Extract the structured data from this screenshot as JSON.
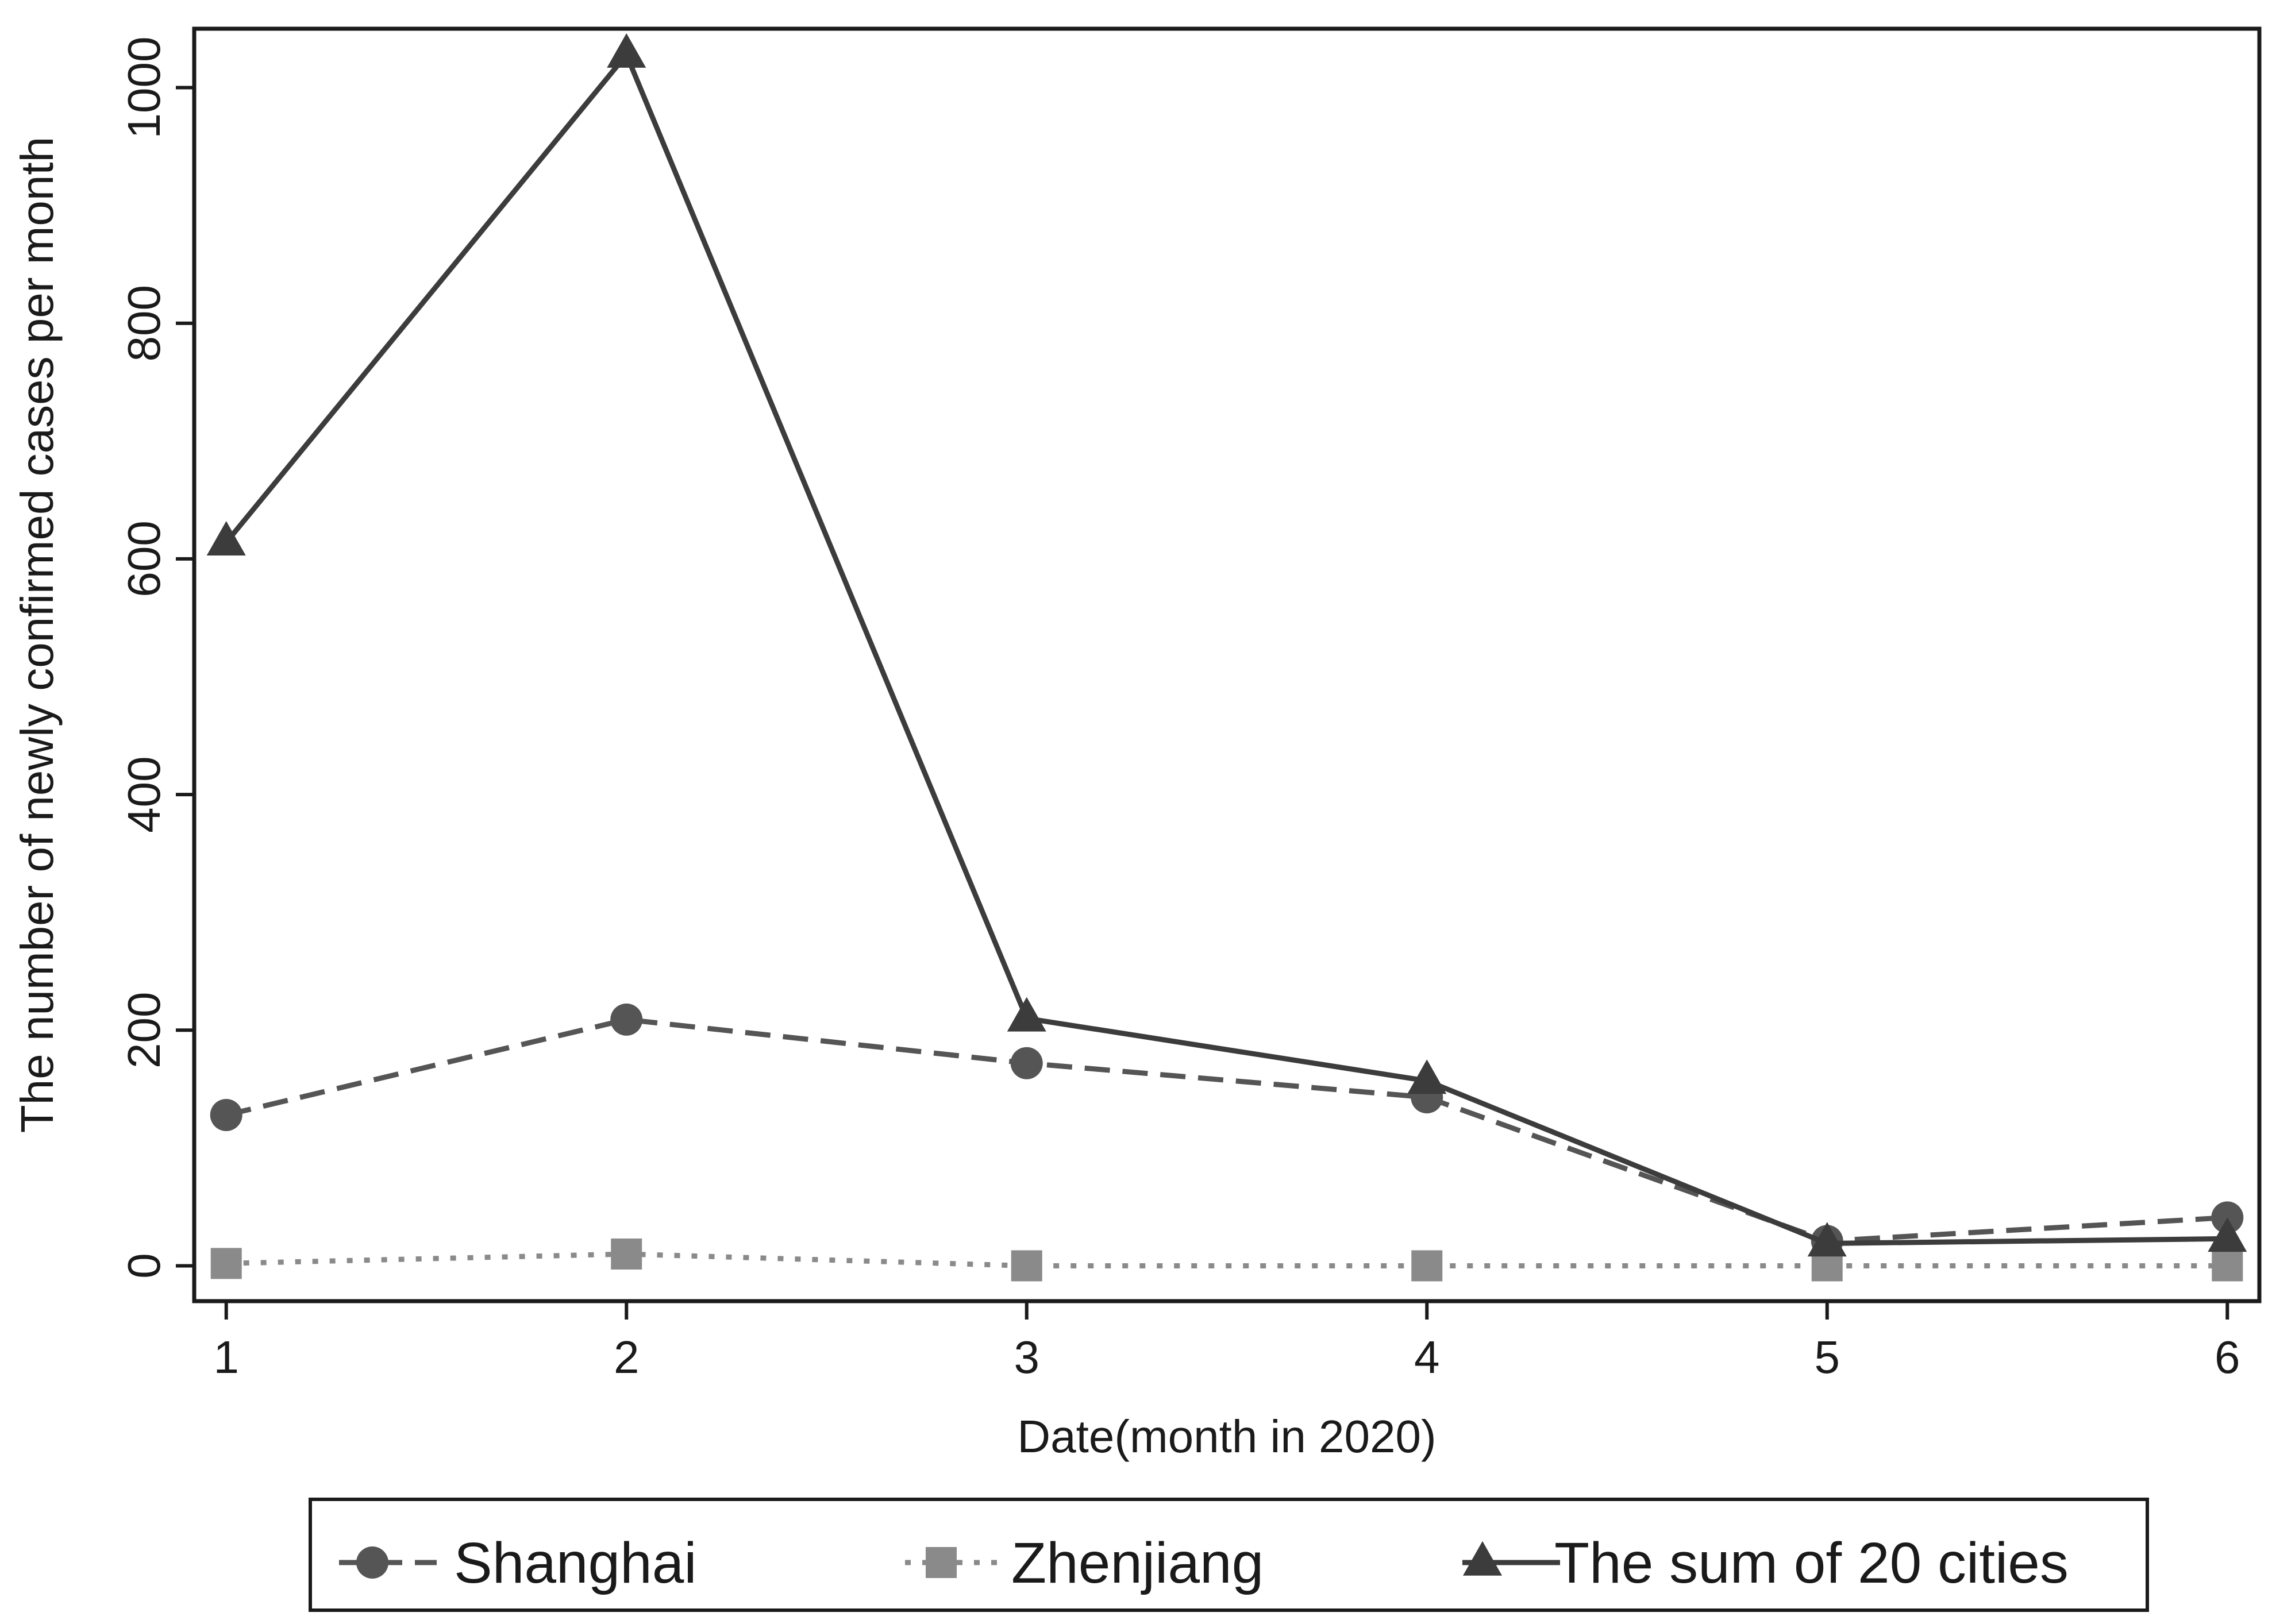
{
  "chart_data": {
    "type": "line",
    "title": "",
    "xlabel": "Date(month in 2020)",
    "ylabel": "The number of newly confirmed cases per month",
    "x": [
      1,
      2,
      3,
      4,
      5,
      6
    ],
    "xlim": [
      0.92,
      6.08
    ],
    "ylim": [
      -30,
      1050
    ],
    "xticks": [
      "1",
      "2",
      "3",
      "4",
      "5",
      "6"
    ],
    "yticks": [
      "0",
      "200",
      "400",
      "600",
      "800",
      "1000"
    ],
    "grid": false,
    "legend_position": "bottom",
    "series": [
      {
        "name": "Shanghai",
        "values": [
          128,
          209,
          172,
          143,
          21,
          41
        ],
        "marker": "circle",
        "line_style": "dashed",
        "color": "#555555"
      },
      {
        "name": "Zhenjiang",
        "values": [
          2,
          10,
          0,
          0,
          0,
          0
        ],
        "marker": "square",
        "line_style": "dotted",
        "color": "#8a8a8a"
      },
      {
        "name": "The sum of 20 cities",
        "values": [
          614,
          1028,
          210,
          157,
          19,
          23
        ],
        "marker": "triangle",
        "line_style": "solid",
        "color": "#3c3c3c"
      }
    ]
  }
}
